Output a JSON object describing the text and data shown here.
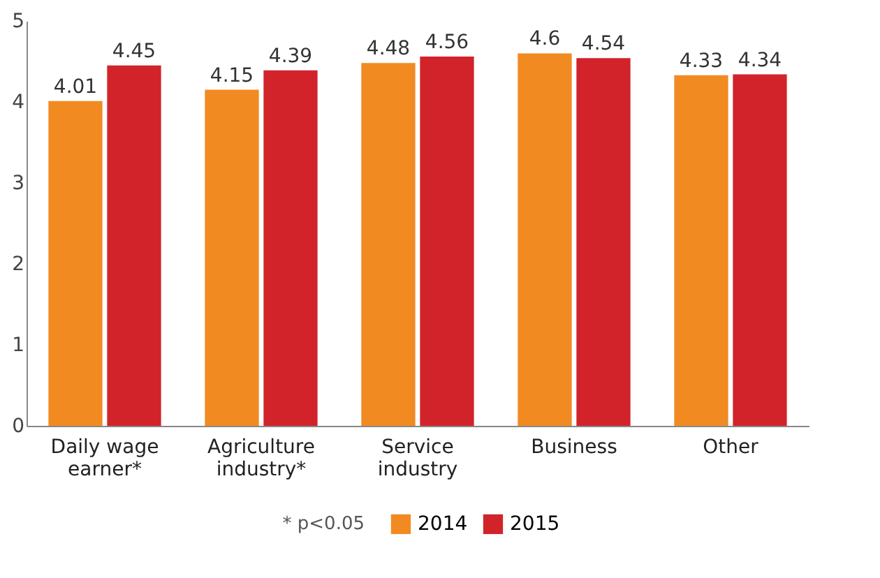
{
  "chart_data": {
    "type": "bar",
    "categories": [
      "Daily wage earner*",
      "Agriculture industry*",
      "Service industry",
      "Business",
      "Other"
    ],
    "series": [
      {
        "name": "2014",
        "color": "#f28a22",
        "values": [
          4.01,
          4.15,
          4.48,
          4.6,
          4.33
        ]
      },
      {
        "name": "2015",
        "color": "#d2232a",
        "values": [
          4.45,
          4.39,
          4.56,
          4.54,
          4.34
        ]
      }
    ],
    "ylim": [
      0,
      5
    ],
    "yticks": [
      0,
      1,
      2,
      3,
      4,
      5
    ],
    "grid": false,
    "legend": "bottom",
    "data_labels": true,
    "annotations": [
      "* p<0.05"
    ]
  }
}
